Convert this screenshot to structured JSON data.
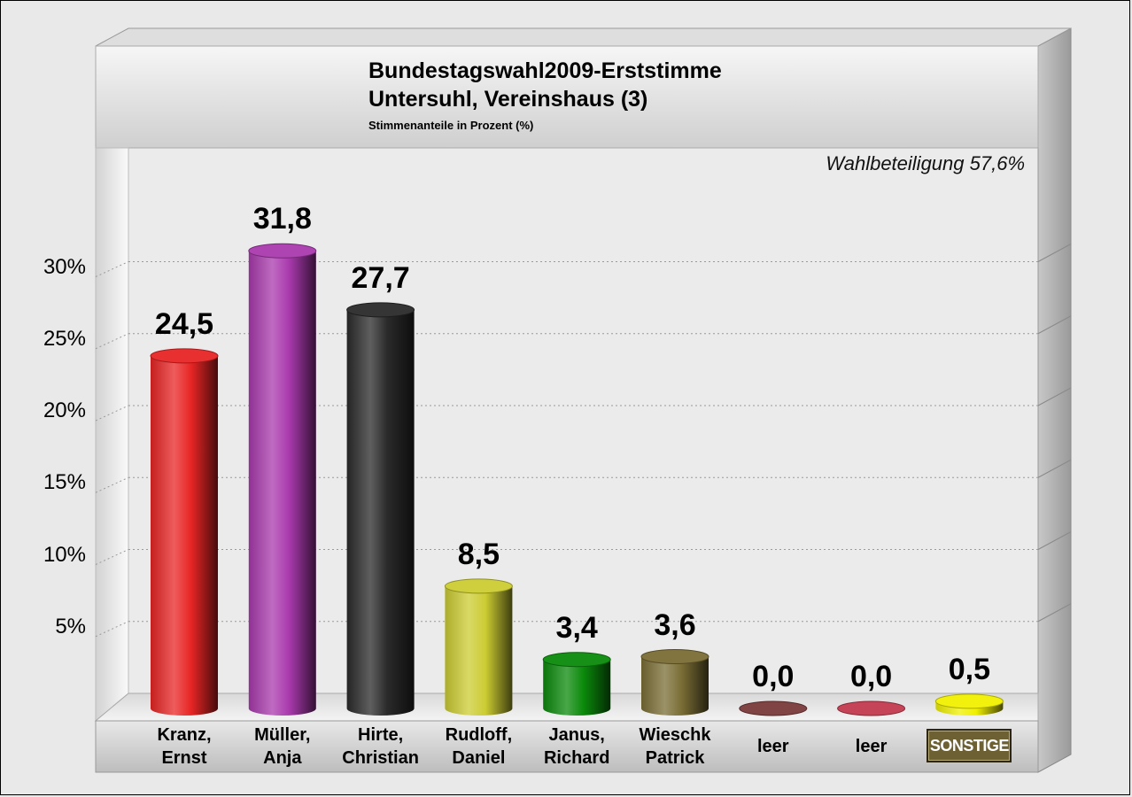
{
  "chart_data": {
    "type": "bar",
    "title": "Bundestagswahl2009-Erststimme",
    "subtitle": "Untersuhl, Vereinshaus (3)",
    "note": "Stimmenanteile in Prozent (%)",
    "annotation": "Wahlbeteiligung 57,6%",
    "categories": [
      "Kranz,\nErnst",
      "Müller,\nAnja",
      "Hirte,\nChristian",
      "Rudloff,\nDaniel",
      "Janus,\nRichard",
      "Wieschk\nPatrick",
      "leer",
      "leer",
      "SONSTIGE"
    ],
    "values": [
      24.5,
      31.8,
      27.7,
      8.5,
      3.4,
      3.6,
      0.0,
      0.0,
      0.5
    ],
    "value_labels": [
      "24,5",
      "31,8",
      "27,7",
      "8,5",
      "3,4",
      "3,6",
      "0,0",
      "0,0",
      "0,5"
    ],
    "colors": [
      "#e82525",
      "#a93aad",
      "#2a2a2a",
      "#cccc33",
      "#0b8a0b",
      "#7a6d35",
      "#7a3a3a",
      "#c23a4e",
      "#f0f000"
    ],
    "yticks": [
      5,
      10,
      15,
      20,
      25,
      30
    ],
    "ytick_labels": [
      "5%",
      "10%",
      "15%",
      "20%",
      "25%",
      "30%"
    ],
    "ylim": [
      0,
      38
    ],
    "grid": true,
    "legend": "none"
  }
}
